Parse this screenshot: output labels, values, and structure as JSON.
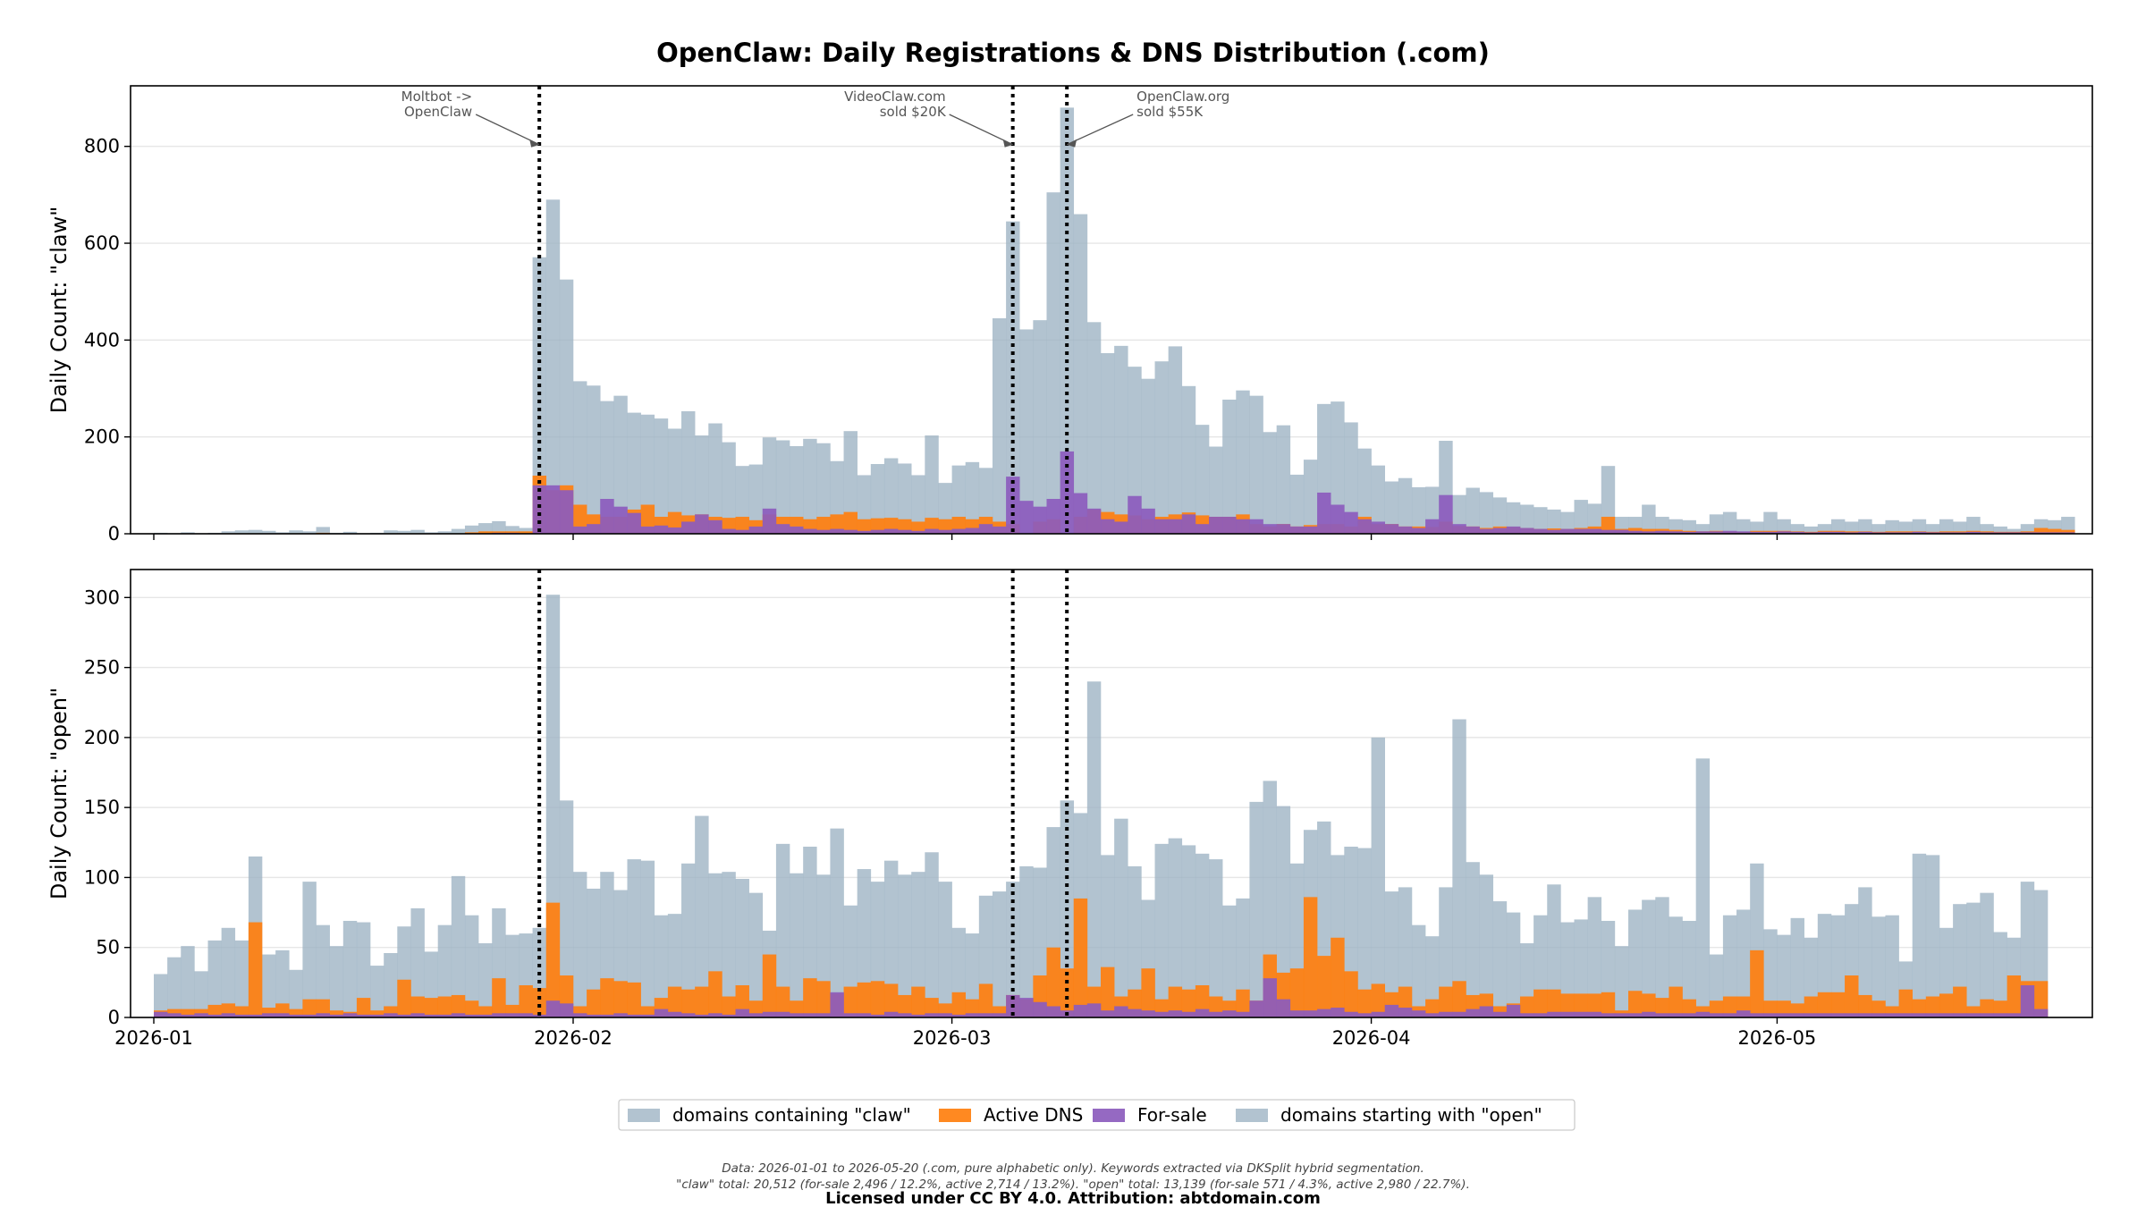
{
  "title": "OpenClaw: Daily Registrations & DNS Distribution (.com)",
  "footnote_line1": "Data: 2026-01-01 to 2026-05-20 (.com, pure alphabetic only). Keywords extracted via DKSplit hybrid segmentation.",
  "footnote_line2": "\"claw\" total: 20,512 (for-sale 2,496 / 12.2%, active 2,714 / 13.2%). \"open\" total: 13,139 (for-sale 571 / 4.3%, active 2,980 / 22.7%).",
  "license": "Licensed under CC BY 4.0. Attribution: abtdomain.com",
  "colors": {
    "total": "#9fb4c4",
    "active": "#ff7f0e",
    "forsale": "#8c5cbd"
  },
  "chart_data": [
    {
      "type": "bar",
      "panel": "top",
      "ylabel": "Daily Count: \"claw\"",
      "ylim": [
        0,
        925
      ],
      "yticks": [
        0,
        200,
        400,
        600,
        800
      ],
      "x_start": "2026-01-01",
      "x_end": "2026-05-20",
      "xticks": [
        "2026-01",
        "2026-02",
        "2026-03",
        "2026-04",
        "2026-05"
      ],
      "grid": true,
      "annotations": [
        {
          "date": "2026-01-29",
          "lines": [
            "Moltbot ->",
            "OpenClaw"
          ],
          "side": "left"
        },
        {
          "date": "2026-03-05",
          "lines": [
            "VideoClaw.com",
            "sold $20K"
          ],
          "side": "left"
        },
        {
          "date": "2026-03-09",
          "lines": [
            "OpenClaw.org",
            "sold $55K"
          ],
          "side": "right"
        }
      ],
      "series": [
        {
          "name": "domains containing \"claw\"",
          "key": "total",
          "values": [
            2,
            1,
            3,
            1,
            2,
            5,
            7,
            8,
            6,
            3,
            7,
            5,
            14,
            2,
            4,
            1,
            2,
            7,
            6,
            8,
            3,
            5,
            10,
            17,
            22,
            26,
            16,
            12,
            571,
            690,
            525,
            315,
            306,
            274,
            285,
            250,
            246,
            238,
            217,
            253,
            203,
            228,
            189,
            140,
            143,
            199,
            193,
            181,
            196,
            187,
            150,
            212,
            121,
            144,
            156,
            145,
            121,
            203,
            105,
            141,
            148,
            136,
            445,
            645,
            422,
            441,
            705,
            880,
            660,
            437,
            373,
            388,
            345,
            320,
            356,
            387,
            305,
            225,
            180,
            277,
            296,
            285,
            210,
            224,
            122,
            153,
            268,
            273,
            230,
            176,
            141,
            108,
            115,
            96,
            97,
            192,
            80,
            95,
            86,
            75,
            65,
            60,
            55,
            50,
            45,
            70,
            62,
            140,
            35,
            35,
            60,
            35,
            30,
            28,
            20,
            40,
            45,
            30,
            25,
            45,
            30,
            20,
            15,
            20,
            30,
            25,
            30,
            20,
            28,
            25,
            30,
            20,
            30,
            25,
            35,
            20,
            15,
            10,
            20,
            30,
            28,
            35
          ]
        },
        {
          "name": "Active DNS",
          "key": "active",
          "values": [
            0,
            0,
            0,
            0,
            0,
            1,
            1,
            1,
            0,
            0,
            1,
            0,
            2,
            0,
            0,
            0,
            0,
            1,
            1,
            1,
            0,
            0,
            1,
            3,
            5,
            5,
            5,
            5,
            120,
            90,
            100,
            60,
            40,
            35,
            35,
            50,
            60,
            35,
            45,
            38,
            40,
            35,
            33,
            35,
            28,
            40,
            35,
            35,
            30,
            35,
            40,
            45,
            30,
            32,
            33,
            30,
            25,
            33,
            30,
            35,
            30,
            35,
            25,
            20,
            0,
            25,
            30,
            0,
            35,
            50,
            45,
            40,
            38,
            30,
            35,
            40,
            44,
            38,
            35,
            35,
            40,
            20,
            15,
            20,
            15,
            18,
            20,
            20,
            15,
            35,
            20,
            20,
            15,
            15,
            14,
            25,
            16,
            15,
            12,
            15,
            14,
            12,
            10,
            11,
            10,
            12,
            15,
            35,
            10,
            12,
            10,
            10,
            8,
            6,
            5,
            6,
            5,
            4,
            6,
            6,
            6,
            5,
            4,
            6,
            6,
            5,
            5,
            4,
            5,
            5,
            5,
            4,
            5,
            5,
            6,
            5,
            4,
            4,
            5,
            12,
            10,
            8
          ]
        },
        {
          "name": "For-sale",
          "key": "forsale",
          "values": [
            0,
            0,
            0,
            0,
            0,
            0,
            0,
            0,
            0,
            0,
            0,
            0,
            0,
            0,
            0,
            0,
            0,
            0,
            0,
            0,
            0,
            0,
            0,
            0,
            1,
            2,
            2,
            1,
            100,
            100,
            90,
            15,
            20,
            72,
            56,
            43,
            15,
            17,
            13,
            25,
            40,
            28,
            10,
            8,
            15,
            52,
            20,
            15,
            10,
            8,
            10,
            8,
            6,
            8,
            10,
            8,
            6,
            10,
            8,
            10,
            12,
            20,
            15,
            118,
            68,
            56,
            72,
            170,
            84,
            52,
            30,
            25,
            78,
            52,
            30,
            30,
            40,
            20,
            35,
            35,
            30,
            30,
            20,
            20,
            15,
            15,
            85,
            60,
            45,
            30,
            25,
            20,
            15,
            12,
            30,
            80,
            20,
            15,
            10,
            12,
            15,
            12,
            10,
            8,
            10,
            10,
            10,
            8,
            8,
            6,
            5,
            6,
            5,
            4,
            5,
            5,
            6,
            5,
            4,
            4,
            5,
            4,
            3,
            4,
            4,
            3,
            4,
            3,
            3,
            3,
            4,
            3,
            3,
            3,
            4,
            3,
            3,
            3,
            3,
            3,
            3,
            3
          ]
        }
      ]
    },
    {
      "type": "bar",
      "panel": "bottom",
      "ylabel": "Daily Count: \"open\"",
      "ylim": [
        0,
        320
      ],
      "yticks": [
        0,
        50,
        100,
        150,
        200,
        250,
        300
      ],
      "x_start": "2026-01-01",
      "x_end": "2026-05-20",
      "xticks": [
        "2026-01",
        "2026-02",
        "2026-03",
        "2026-04",
        "2026-05"
      ],
      "grid": true,
      "series": [
        {
          "name": "domains starting with \"open\"",
          "key": "total",
          "values": [
            31,
            43,
            51,
            33,
            55,
            64,
            55,
            115,
            45,
            48,
            34,
            97,
            66,
            51,
            69,
            68,
            37,
            46,
            65,
            78,
            47,
            66,
            101,
            73,
            53,
            78,
            59,
            60,
            64,
            302,
            155,
            104,
            92,
            104,
            91,
            113,
            112,
            73,
            74,
            110,
            144,
            103,
            104,
            99,
            89,
            62,
            124,
            103,
            122,
            102,
            135,
            80,
            106,
            97,
            112,
            102,
            104,
            118,
            97,
            64,
            60,
            87,
            90,
            97,
            108,
            107,
            136,
            155,
            146,
            240,
            116,
            142,
            108,
            84,
            124,
            128,
            123,
            117,
            113,
            80,
            85,
            154,
            169,
            151,
            110,
            134,
            140,
            116,
            122,
            121,
            200,
            90,
            93,
            66,
            58,
            93,
            213,
            111,
            102,
            83,
            75,
            53,
            73,
            95,
            68,
            70,
            86,
            69,
            51,
            77,
            84,
            86,
            72,
            69,
            185,
            45,
            73,
            77,
            110,
            63,
            59,
            71,
            57,
            74,
            73,
            81,
            93,
            72,
            73,
            40,
            117,
            116,
            64,
            81,
            82,
            89,
            61,
            57,
            97,
            91
          ]
        },
        {
          "name": "Active DNS",
          "key": "active",
          "values": [
            5,
            6,
            6,
            6,
            9,
            10,
            8,
            68,
            7,
            10,
            6,
            13,
            13,
            5,
            4,
            14,
            5,
            8,
            27,
            15,
            14,
            15,
            16,
            12,
            8,
            28,
            9,
            23,
            21,
            82,
            30,
            8,
            20,
            28,
            26,
            25,
            8,
            14,
            22,
            20,
            22,
            33,
            15,
            23,
            12,
            45,
            22,
            12,
            28,
            26,
            17,
            22,
            25,
            26,
            24,
            16,
            22,
            14,
            10,
            18,
            13,
            24,
            8,
            16,
            13,
            30,
            50,
            35,
            85,
            22,
            36,
            15,
            20,
            35,
            13,
            22,
            20,
            23,
            15,
            12,
            20,
            12,
            45,
            32,
            35,
            86,
            44,
            57,
            33,
            20,
            24,
            18,
            22,
            8,
            13,
            22,
            26,
            16,
            17,
            8,
            10,
            15,
            20,
            20,
            17,
            17,
            17,
            18,
            5,
            19,
            17,
            14,
            22,
            13,
            8,
            12,
            15,
            15,
            48,
            12,
            12,
            10,
            15,
            18,
            18,
            30,
            16,
            12,
            8,
            20,
            13,
            15,
            17,
            22,
            8,
            13,
            12,
            30,
            26,
            26
          ]
        },
        {
          "name": "For-sale",
          "key": "forsale",
          "values": [
            4,
            3,
            2,
            3,
            2,
            3,
            2,
            2,
            3,
            3,
            2,
            2,
            3,
            2,
            3,
            2,
            2,
            3,
            2,
            3,
            2,
            2,
            3,
            2,
            2,
            3,
            3,
            3,
            2,
            12,
            10,
            3,
            2,
            2,
            3,
            2,
            2,
            6,
            4,
            3,
            2,
            3,
            2,
            6,
            3,
            4,
            4,
            3,
            3,
            3,
            18,
            3,
            3,
            2,
            4,
            3,
            2,
            3,
            3,
            2,
            3,
            3,
            3,
            16,
            14,
            11,
            8,
            5,
            9,
            10,
            5,
            8,
            6,
            5,
            4,
            5,
            4,
            6,
            4,
            5,
            4,
            12,
            28,
            13,
            5,
            5,
            6,
            7,
            4,
            3,
            4,
            9,
            7,
            5,
            3,
            4,
            4,
            6,
            8,
            4,
            9,
            3,
            3,
            4,
            4,
            4,
            4,
            3,
            3,
            3,
            4,
            3,
            3,
            3,
            4,
            3,
            3,
            5,
            3,
            3,
            3,
            3,
            3,
            3,
            3,
            3,
            3,
            3,
            3,
            3,
            3,
            3,
            3,
            3,
            3,
            3,
            3,
            3,
            23,
            6
          ]
        }
      ]
    }
  ],
  "legend": [
    {
      "label": "domains containing \"claw\"",
      "key": "total"
    },
    {
      "label": "Active DNS",
      "key": "active"
    },
    {
      "label": "For-sale",
      "key": "forsale"
    },
    {
      "label": "domains starting with \"open\"",
      "key": "total"
    }
  ]
}
